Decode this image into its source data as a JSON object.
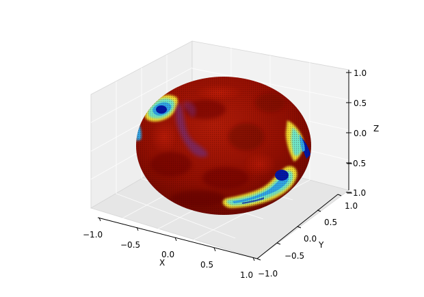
{
  "chart_data": {
    "type": "surface",
    "projection": "3d",
    "surface": "unit sphere",
    "colormap": "jet",
    "title": "",
    "xlabel": "X",
    "ylabel": "Y",
    "zlabel": "Z",
    "xlim": [
      -1.0,
      1.0
    ],
    "ylim": [
      -1.0,
      1.0
    ],
    "zlim": [
      -1.0,
      1.0
    ],
    "x_ticks": [
      "−1.0",
      "−0.5",
      "0.0",
      "0.5",
      "1.0"
    ],
    "y_ticks": [
      "−1.0",
      "−0.5",
      "0.0",
      "0.5",
      "1.0"
    ],
    "z_ticks": [
      "−1.0",
      "−0.5",
      "0.0",
      "0.5",
      "1.0"
    ],
    "grid": true,
    "colors": {
      "background_field": "#8c0e00",
      "highlight": "#b01a06",
      "low_value": "#0018a8",
      "mid_value": "#2fa8e8",
      "cyan_value": "#6ee6c8",
      "yellow_value": "#f2e030"
    }
  }
}
